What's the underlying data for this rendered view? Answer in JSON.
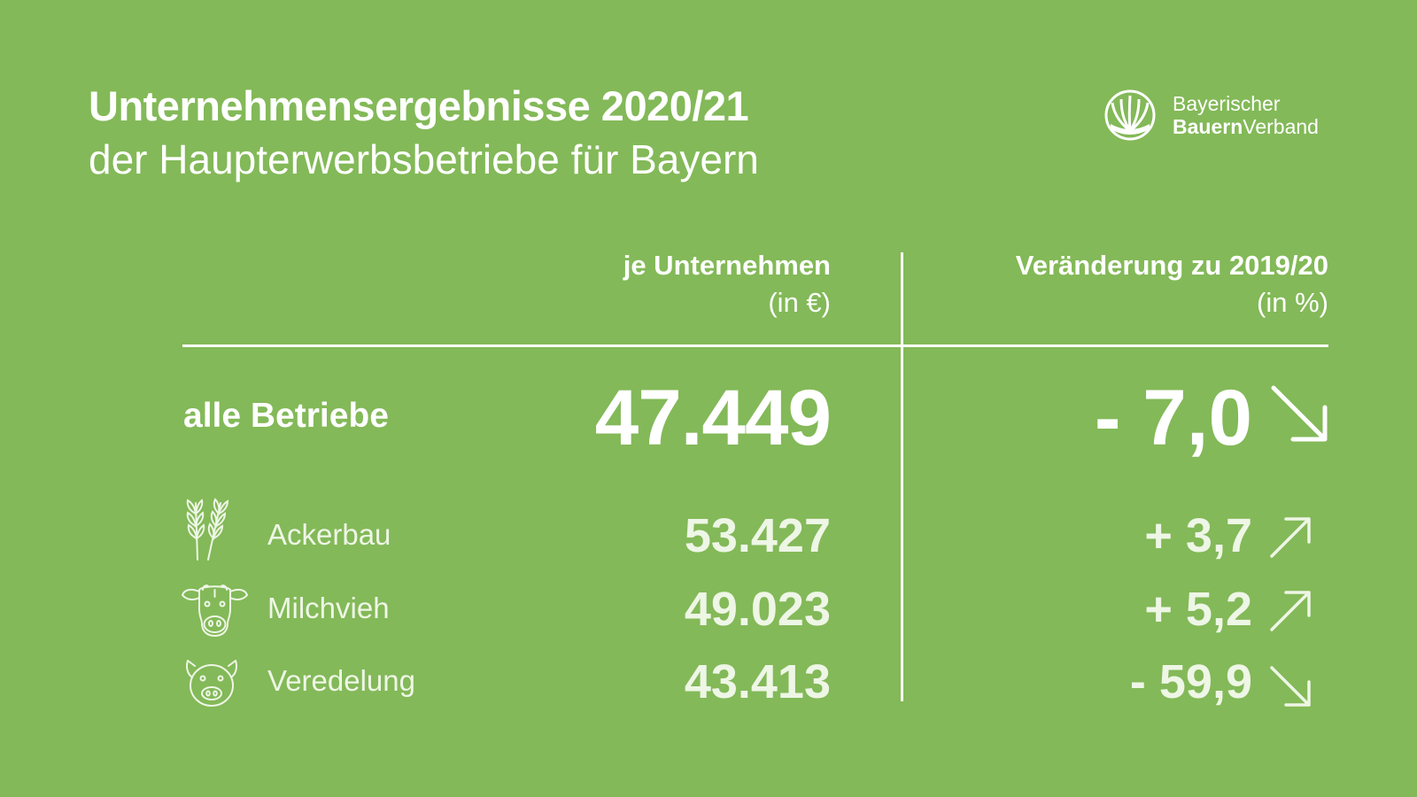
{
  "header": {
    "title": "Unternehmensergebnisse 2020/21",
    "subtitle": "der Haupterwerbsbetriebe für Bayern"
  },
  "logo": {
    "line1": "Bayerischer",
    "line2_bold": "Bauern",
    "line2_regular": "Verband",
    "icon": "wheat-sheaf-logo-icon"
  },
  "columns": [
    {
      "heading": "je Unternehmen",
      "unit": "(in €)"
    },
    {
      "heading": "Veränderung zu 2019/20",
      "unit": "(in %)"
    }
  ],
  "total": {
    "label": "alle Betriebe",
    "value": "47.449",
    "change": "- 7,0",
    "trend": "down"
  },
  "rows": [
    {
      "icon": "wheat-icon",
      "label": "Ackerbau",
      "value": "53.427",
      "change": "+ 3,7",
      "trend": "up"
    },
    {
      "icon": "cow-icon",
      "label": "Milchvieh",
      "value": "49.023",
      "change": "+ 5,2",
      "trend": "up"
    },
    {
      "icon": "pig-icon",
      "label": "Veredelung",
      "value": "43.413",
      "change": "- 59,9",
      "trend": "down"
    }
  ],
  "colors": {
    "background": "#83b958",
    "primary_text": "#ffffff",
    "secondary_text": "#eef6e6"
  }
}
